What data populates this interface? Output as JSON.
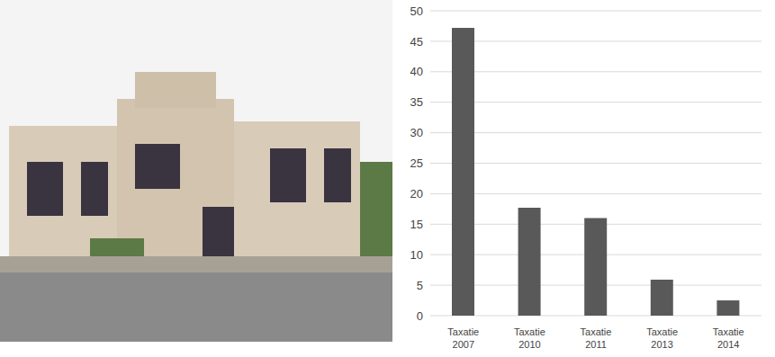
{
  "chart_data": {
    "type": "bar",
    "categories": [
      "Taxatie 2007",
      "Taxatie 2010",
      "Taxatie 2011",
      "Taxatie 2013",
      "Taxatie 2014"
    ],
    "values": [
      47.2,
      17.7,
      16,
      5.9,
      2.5
    ],
    "color": "#595959",
    "ylim": [
      0,
      50
    ],
    "yticks": [
      0,
      5,
      10,
      15,
      20,
      25,
      30,
      35,
      40,
      45,
      50
    ],
    "grid": true
  }
}
